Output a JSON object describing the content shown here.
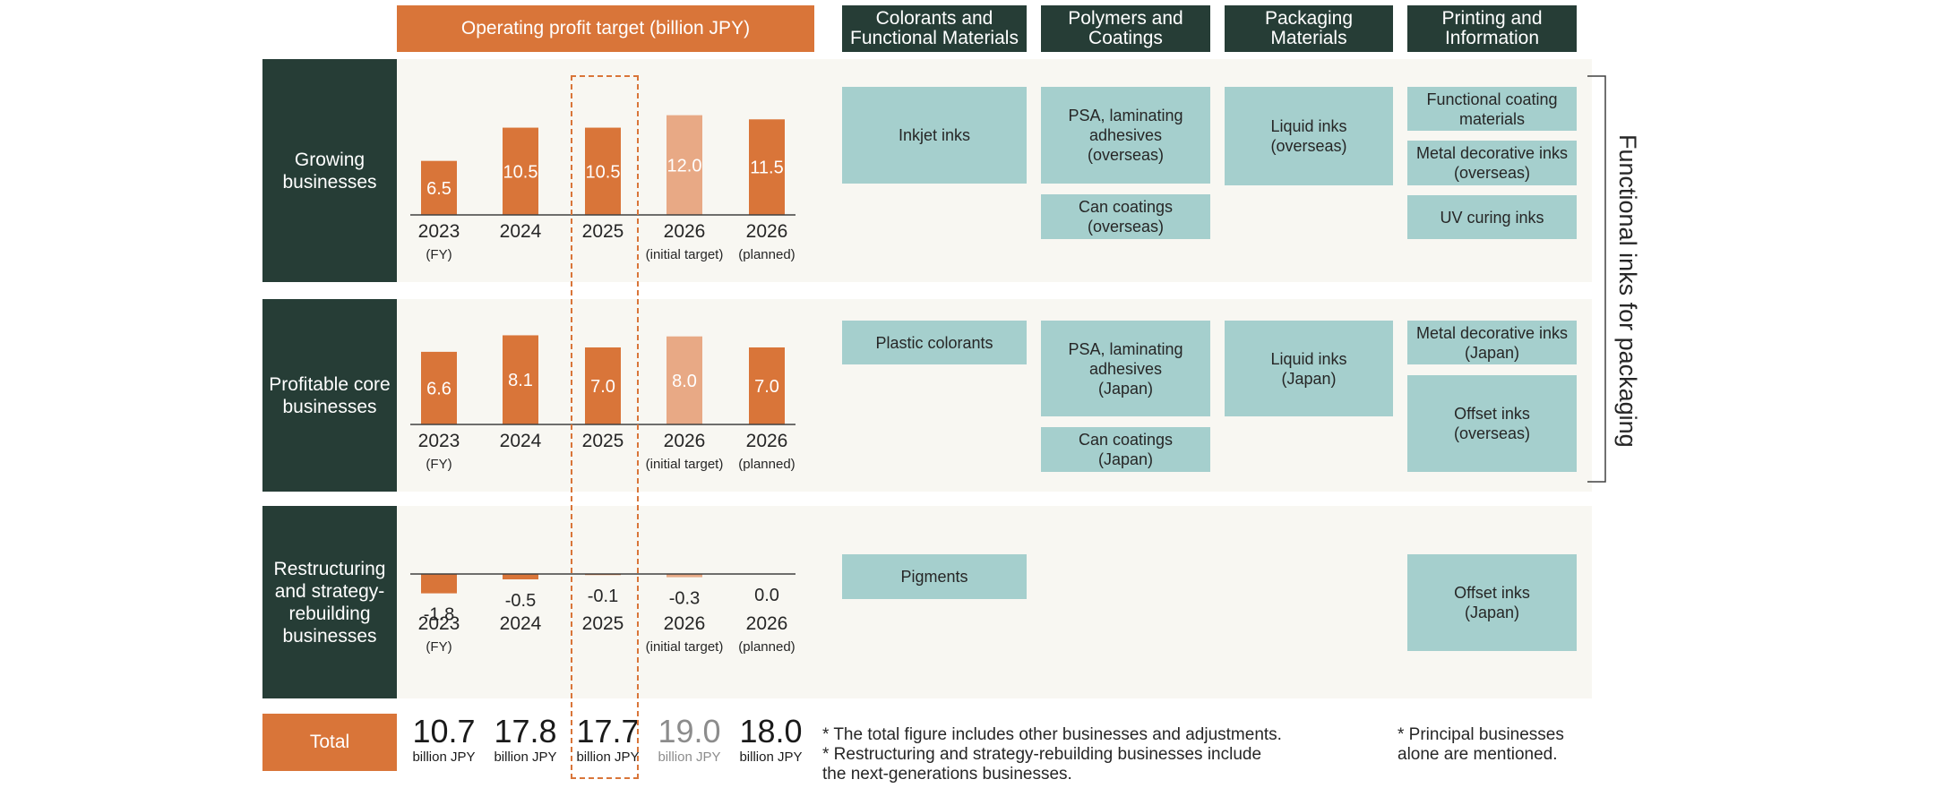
{
  "header": {
    "chart_title": "Operating profit target (billion JPY)",
    "segments": [
      "Colorants and\nFunctional Materials",
      "Polymers and\nCoatings",
      "Packaging\nMaterials",
      "Printing and\nInformation"
    ]
  },
  "rows": [
    {
      "label": "Growing\nbusinesses",
      "segments": [
        [
          "Inkjet inks"
        ],
        [
          "PSA, laminating\nadhesives\n(overseas)",
          "Can coatings\n(overseas)"
        ],
        [
          "Liquid inks\n(overseas)"
        ],
        [
          "Functional coating\nmaterials",
          "Metal decorative inks\n(overseas)",
          "UV curing inks"
        ]
      ]
    },
    {
      "label": "Profitable core\nbusinesses",
      "segments": [
        [
          "Plastic colorants"
        ],
        [
          "PSA, laminating\nadhesives\n(Japan)",
          "Can coatings\n(Japan)"
        ],
        [
          "Liquid inks\n(Japan)"
        ],
        [
          "Metal decorative inks\n(Japan)",
          "Offset inks\n(overseas)"
        ]
      ]
    },
    {
      "label": "Restructuring\nand strategy-\nrebuilding\nbusinesses",
      "segments": [
        [
          "Pigments"
        ],
        [],
        [],
        [
          "Offset inks\n(Japan)"
        ]
      ]
    }
  ],
  "bracket_label": "Functional inks for packaging",
  "total": {
    "label": "Total",
    "values": [
      "10.7",
      "17.8",
      "17.7",
      "19.0",
      "18.0"
    ],
    "unit": "billion JPY"
  },
  "notes": {
    "left": "* The total figure includes other businesses and adjustments.\n* Restructuring and strategy-rebuilding businesses include\n   the next-generations businesses.",
    "right": "* Principal businesses\n   alone are mentioned."
  },
  "colors": {
    "bar": "#d97539",
    "bar_light": "#e8a985",
    "dark": "#263d36",
    "box": "#a5cfcd",
    "band": "#f8f7f2"
  },
  "chart_data": [
    {
      "type": "bar",
      "title": "Growing businesses",
      "categories": [
        [
          "2023",
          "(FY)"
        ],
        [
          "2024",
          ""
        ],
        [
          "2025",
          ""
        ],
        [
          "2026",
          "(initial target)"
        ],
        [
          "2026",
          "(planned)"
        ]
      ],
      "values": [
        6.5,
        10.5,
        10.5,
        12.0,
        11.5
      ],
      "labels": [
        "6.5",
        "10.5",
        "10.5",
        "12.0",
        "11.5"
      ],
      "highlight_index": 3,
      "ylim": [
        0,
        12.5
      ]
    },
    {
      "type": "bar",
      "title": "Profitable core businesses",
      "categories": [
        [
          "2023",
          "(FY)"
        ],
        [
          "2024",
          ""
        ],
        [
          "2025",
          ""
        ],
        [
          "2026",
          "(initial target)"
        ],
        [
          "2026",
          "(planned)"
        ]
      ],
      "values": [
        6.6,
        8.1,
        7.0,
        8.0,
        7.0
      ],
      "labels": [
        "6.6",
        "8.1",
        "7.0",
        "8.0",
        "7.0"
      ],
      "highlight_index": 3,
      "ylim": [
        0,
        8.3
      ]
    },
    {
      "type": "bar",
      "title": "Restructuring and strategy-rebuilding businesses",
      "categories": [
        [
          "2023",
          "(FY)"
        ],
        [
          "2024",
          ""
        ],
        [
          "2025",
          ""
        ],
        [
          "2026",
          "(initial target)"
        ],
        [
          "2026",
          "(planned)"
        ]
      ],
      "values": [
        -1.8,
        -0.5,
        -0.1,
        -0.3,
        0.0
      ],
      "labels": [
        "-1.8",
        "-0.5",
        "-0.1",
        "-0.3",
        "0.0"
      ],
      "highlight_index": 3
    }
  ]
}
